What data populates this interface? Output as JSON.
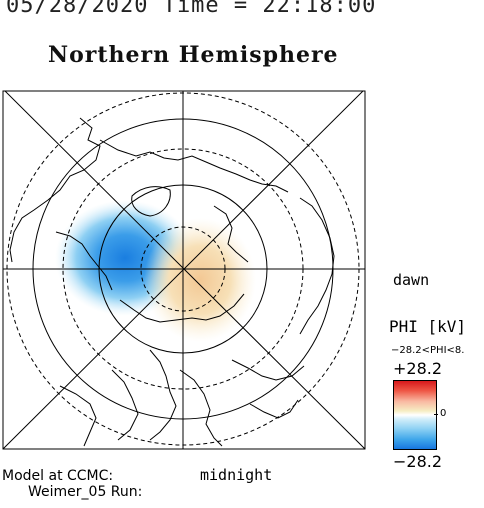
{
  "header": {
    "date_time": "05/28/2020 Time = 22:18:00",
    "hemisphere": "Northern Hemisphere"
  },
  "map": {
    "labels": {
      "dawn": "dawn",
      "midnight": "midnight"
    },
    "projection": "polar",
    "pattern": "two-cell potential (negative cell dusk side, positive cell dawn side)"
  },
  "colorbar": {
    "title": "PHI [kV]",
    "range_text": "−28.2<PHI<8.",
    "max_label": "+28.2",
    "min_label": "−28.2",
    "zero_label": "0",
    "colors": {
      "max": "#d7191c",
      "zero": "#ffffff",
      "min": "#1777e0"
    }
  },
  "footer": {
    "model": "Model at CCMC:",
    "run": "Weimer_05 Run:"
  }
}
